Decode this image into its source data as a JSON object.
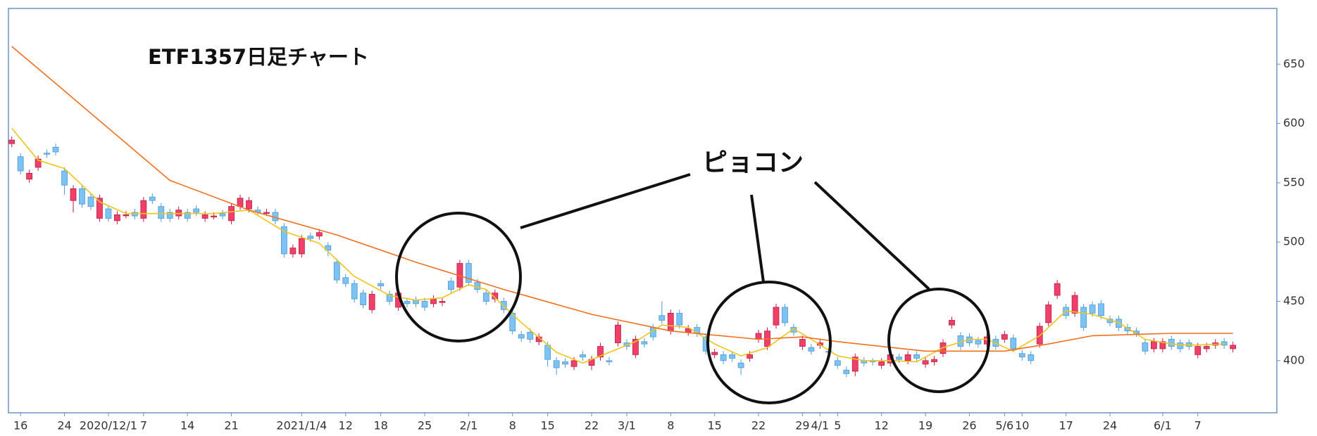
{
  "chart_data": {
    "type": "candlestick",
    "title": "ETF1357日足チャート",
    "annotation": "ピョコン",
    "up_color": "#f0406a",
    "down_color": "#7cc2f2",
    "categories": [
      null,
      "16",
      null,
      null,
      null,
      null,
      "24",
      null,
      null,
      null,
      null,
      "2020/12/1",
      null,
      null,
      null,
      "7",
      null,
      null,
      null,
      null,
      "14",
      null,
      null,
      null,
      null,
      "21",
      null,
      null,
      null,
      null,
      null,
      null,
      null,
      "2021/1/4",
      null,
      null,
      null,
      null,
      "12",
      null,
      null,
      null,
      "18",
      null,
      null,
      null,
      null,
      "25",
      null,
      null,
      null,
      null,
      "2/1",
      null,
      null,
      null,
      null,
      "8",
      null,
      null,
      null,
      "15",
      null,
      null,
      null,
      null,
      "22",
      null,
      null,
      null,
      "3/1",
      null,
      null,
      null,
      null,
      "8",
      null,
      null,
      null,
      null,
      "15",
      null,
      null,
      null,
      null,
      "22",
      null,
      null,
      null,
      null,
      "29",
      null,
      "4/1",
      null,
      "5",
      null,
      null,
      null,
      null,
      "12",
      null,
      null,
      null,
      null,
      "19",
      null,
      null,
      null,
      null,
      "26",
      null,
      null,
      null,
      "5/6",
      null,
      "10",
      null,
      null,
      null,
      null,
      "17",
      null,
      null,
      null,
      null,
      "24",
      null,
      null,
      null,
      null,
      null,
      "6/1",
      null,
      null,
      null,
      "7",
      null,
      null,
      null,
      null
    ],
    "open": [
      583,
      572,
      553,
      563,
      575,
      580,
      560,
      535,
      545,
      538,
      520,
      528,
      518,
      523,
      525,
      520,
      538,
      530,
      525,
      522,
      525,
      528,
      520,
      522,
      524,
      518,
      530,
      528,
      527,
      525,
      525,
      513,
      490,
      490,
      505,
      505,
      497,
      483,
      470,
      465,
      457,
      443,
      465,
      456,
      445,
      450,
      451,
      450,
      448,
      449,
      467,
      462,
      482,
      466,
      457,
      452,
      450,
      440,
      422,
      424,
      416,
      413,
      400,
      399,
      395,
      405,
      396,
      403,
      400,
      415,
      415,
      405,
      416,
      428,
      438,
      425,
      440,
      424,
      428,
      420,
      405,
      405,
      405,
      398,
      402,
      418,
      412,
      430,
      445,
      428,
      412,
      411,
      413,
      408,
      400,
      392,
      391,
      400,
      400,
      396,
      398,
      403,
      400,
      405,
      397,
      399,
      406,
      430,
      421,
      420,
      417,
      414,
      418,
      418,
      419,
      406,
      405,
      414,
      432,
      455,
      445,
      440,
      445,
      447,
      448,
      435,
      435,
      428,
      425,
      415,
      410,
      410,
      418,
      415,
      415,
      405,
      410,
      413,
      416,
      410
    ],
    "high": [
      589,
      575,
      561,
      573,
      578,
      583,
      563,
      548,
      548,
      541,
      540,
      531,
      526,
      526,
      528,
      538,
      541,
      533,
      528,
      530,
      528,
      531,
      526,
      525,
      527,
      533,
      540,
      538,
      530,
      528,
      528,
      516,
      498,
      506,
      508,
      511,
      500,
      486,
      473,
      468,
      460,
      459,
      468,
      459,
      460,
      453,
      454,
      453,
      455,
      453,
      470,
      485,
      485,
      469,
      460,
      460,
      453,
      443,
      425,
      427,
      423,
      416,
      403,
      402,
      403,
      408,
      404,
      415,
      403,
      433,
      418,
      421,
      419,
      431,
      450,
      443,
      443,
      430,
      431,
      423,
      410,
      408,
      408,
      401,
      408,
      426,
      428,
      448,
      448,
      431,
      421,
      414,
      418,
      411,
      403,
      395,
      406,
      403,
      402,
      402,
      408,
      406,
      408,
      408,
      403,
      404,
      418,
      437,
      424,
      423,
      420,
      423,
      421,
      425,
      422,
      409,
      408,
      432,
      450,
      468,
      448,
      458,
      448,
      450,
      451,
      438,
      438,
      431,
      428,
      418,
      419,
      419,
      421,
      418,
      418,
      415,
      415,
      418,
      419,
      416
    ],
    "low": [
      580,
      557,
      550,
      560,
      571,
      573,
      540,
      525,
      529,
      527,
      517,
      517,
      515,
      520,
      519,
      517,
      532,
      517,
      517,
      519,
      517,
      522,
      517,
      519,
      519,
      515,
      527,
      525,
      522,
      522,
      515,
      487,
      487,
      487,
      500,
      502,
      488,
      465,
      462,
      449,
      444,
      440,
      460,
      447,
      442,
      445,
      445,
      442,
      445,
      446,
      457,
      459,
      463,
      457,
      447,
      449,
      440,
      422,
      416,
      415,
      413,
      395,
      388,
      394,
      392,
      400,
      392,
      400,
      396,
      412,
      409,
      402,
      411,
      417,
      431,
      422,
      427,
      421,
      420,
      405,
      402,
      397,
      399,
      388,
      399,
      415,
      409,
      427,
      429,
      421,
      409,
      405,
      410,
      404,
      393,
      386,
      387,
      395,
      396,
      393,
      395,
      398,
      397,
      399,
      394,
      396,
      403,
      427,
      409,
      412,
      411,
      411,
      409,
      415,
      407,
      400,
      397,
      411,
      429,
      452,
      435,
      437,
      425,
      437,
      435,
      429,
      425,
      422,
      420,
      405,
      407,
      407,
      409,
      407,
      409,
      402,
      407,
      410,
      410,
      407
    ],
    "close": [
      586,
      560,
      558,
      570,
      574,
      576,
      548,
      545,
      532,
      530,
      537,
      520,
      523,
      523,
      522,
      535,
      535,
      520,
      520,
      527,
      520,
      525,
      523,
      522,
      522,
      530,
      537,
      535,
      525,
      525,
      518,
      490,
      495,
      503,
      503,
      508,
      493,
      468,
      465,
      452,
      447,
      456,
      463,
      450,
      457,
      448,
      448,
      445,
      452,
      450,
      460,
      482,
      466,
      460,
      450,
      457,
      443,
      425,
      419,
      418,
      420,
      401,
      394,
      397,
      400,
      403,
      401,
      412,
      399,
      430,
      412,
      418,
      414,
      420,
      434,
      440,
      430,
      427,
      423,
      408,
      407,
      400,
      402,
      394,
      405,
      423,
      425,
      445,
      432,
      424,
      418,
      408,
      415,
      407,
      396,
      389,
      403,
      398,
      399,
      399,
      405,
      401,
      405,
      402,
      400,
      401,
      415,
      434,
      412,
      415,
      414,
      420,
      412,
      422,
      410,
      403,
      400,
      429,
      447,
      465,
      438,
      455,
      428,
      440,
      438,
      432,
      428,
      425,
      423,
      408,
      416,
      416,
      412,
      410,
      412,
      412,
      412,
      415,
      413,
      413
    ],
    "overlays": [
      {
        "color": "#f0c418",
        "x": [
          0,
          3,
          6,
          10,
          13,
          18,
          23,
          27,
          31,
          35,
          39,
          43,
          46,
          49,
          52,
          54,
          58,
          62,
          65,
          67,
          71,
          74,
          77,
          80,
          83,
          86,
          89,
          91,
          94,
          97,
          100,
          103,
          106,
          109,
          111,
          114,
          117,
          120,
          123,
          126,
          129,
          132,
          134,
          138
        ],
        "values": [
          596,
          569,
          562,
          534,
          524,
          524,
          524,
          527,
          509,
          499,
          471,
          455,
          451,
          453,
          464,
          460,
          432,
          407,
          398,
          404,
          416,
          430,
          428,
          414,
          404,
          411,
          427,
          418,
          404,
          400,
          400,
          399,
          411,
          418,
          418,
          408,
          421,
          442,
          439,
          432,
          418,
          414,
          413,
          414
        ]
      },
      {
        "color": "#f07020",
        "x": [
          0,
          4,
          18,
          27,
          37,
          46,
          56,
          66,
          75,
          85,
          90,
          94,
          104,
          113,
          118,
          123,
          132,
          139
        ],
        "values": [
          665,
          640,
          552,
          527,
          506,
          483,
          460,
          439,
          425,
          418,
          420,
          416,
          408,
          408,
          414,
          421,
          423,
          423
        ]
      }
    ],
    "ylim": [
      356,
      697
    ],
    "yticks": [
      400,
      450,
      500,
      550,
      600,
      650
    ]
  }
}
